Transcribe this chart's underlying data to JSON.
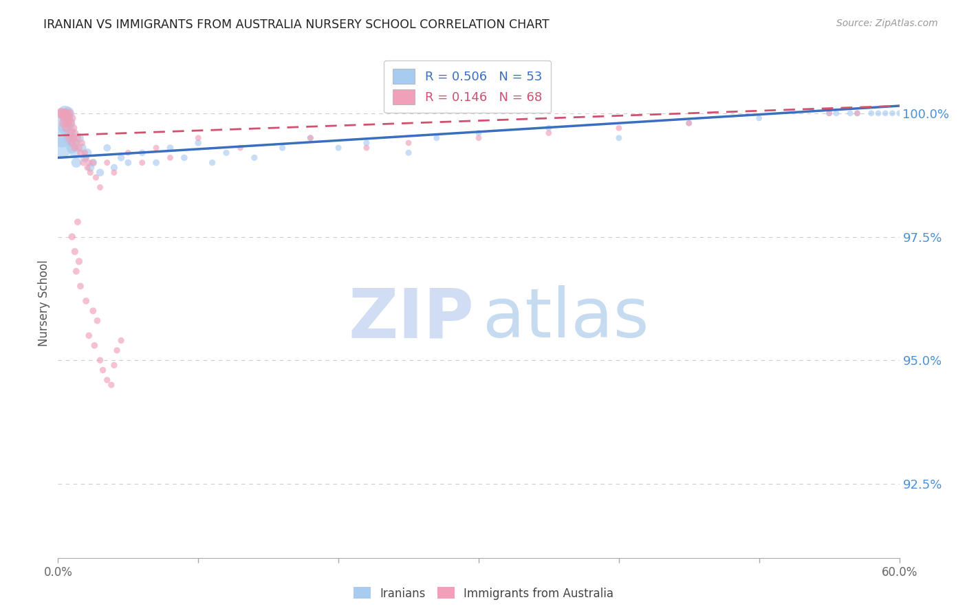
{
  "title": "IRANIAN VS IMMIGRANTS FROM AUSTRALIA NURSERY SCHOOL CORRELATION CHART",
  "source": "Source: ZipAtlas.com",
  "ylabel": "Nursery School",
  "yticks": [
    92.5,
    95.0,
    97.5,
    100.0
  ],
  "ytick_labels": [
    "92.5%",
    "95.0%",
    "97.5%",
    "100.0%"
  ],
  "xmin": 0.0,
  "xmax": 60.0,
  "ymin": 91.0,
  "ymax": 101.3,
  "iranians_color": "#A8CCF0",
  "immigrants_color": "#F0A0B8",
  "iranians_line_color": "#3A6EBF",
  "immigrants_line_color": "#D05070",
  "legend_R_iranians": "R = 0.506",
  "legend_N_iranians": "N = 53",
  "legend_R_immigrants": "R = 0.146",
  "legend_N_immigrants": "N = 68",
  "watermark_zip_color": "#C8D8F0",
  "watermark_atlas_color": "#A8C8E8",
  "grid_color": "#CCCCCC",
  "title_color": "#222222",
  "axis_label_color": "#555555",
  "ytick_color": "#4A90D9",
  "background_color": "#FFFFFF",
  "iranians_x": [
    0.2,
    0.3,
    0.4,
    0.5,
    0.5,
    0.6,
    0.7,
    0.8,
    0.8,
    0.9,
    1.0,
    1.1,
    1.2,
    1.3,
    1.5,
    1.7,
    1.9,
    2.1,
    2.3,
    2.5,
    3.0,
    3.5,
    4.0,
    4.5,
    5.0,
    6.0,
    7.0,
    8.0,
    9.0,
    10.0,
    11.0,
    12.0,
    14.0,
    16.0,
    18.0,
    20.0,
    22.0,
    25.0,
    27.0,
    30.0,
    35.0,
    40.0,
    45.0,
    50.0,
    55.0,
    57.0,
    58.0,
    59.0,
    59.5,
    60.0,
    55.5,
    56.5,
    58.5
  ],
  "iranians_y": [
    99.3,
    99.5,
    99.8,
    100.0,
    99.7,
    99.9,
    100.0,
    99.5,
    99.8,
    99.6,
    99.3,
    99.4,
    99.2,
    99.0,
    99.5,
    99.3,
    99.1,
    99.2,
    98.9,
    99.0,
    98.8,
    99.3,
    98.9,
    99.1,
    99.0,
    99.2,
    99.0,
    99.3,
    99.1,
    99.4,
    99.0,
    99.2,
    99.1,
    99.3,
    99.5,
    99.3,
    99.4,
    99.2,
    99.5,
    99.6,
    99.7,
    99.5,
    99.8,
    99.9,
    100.0,
    100.0,
    100.0,
    100.0,
    100.0,
    100.0,
    100.0,
    100.0,
    100.0
  ],
  "iranians_sizes": [
    500,
    400,
    300,
    250,
    200,
    200,
    180,
    180,
    160,
    150,
    140,
    130,
    120,
    110,
    100,
    90,
    85,
    80,
    75,
    70,
    65,
    60,
    55,
    55,
    50,
    50,
    50,
    50,
    48,
    48,
    45,
    45,
    44,
    44,
    44,
    43,
    43,
    42,
    42,
    42,
    41,
    41,
    41,
    40,
    40,
    40,
    40,
    40,
    40,
    40,
    40,
    40,
    40
  ],
  "immigrants_x": [
    0.2,
    0.3,
    0.4,
    0.5,
    0.5,
    0.6,
    0.6,
    0.7,
    0.7,
    0.8,
    0.8,
    0.9,
    0.9,
    1.0,
    1.0,
    1.1,
    1.1,
    1.2,
    1.2,
    1.3,
    1.4,
    1.5,
    1.6,
    1.7,
    1.8,
    1.9,
    2.0,
    2.1,
    2.2,
    2.3,
    2.5,
    2.7,
    3.0,
    3.5,
    4.0,
    5.0,
    6.0,
    7.0,
    8.0,
    10.0,
    13.0,
    1.0,
    1.2,
    1.5,
    1.3,
    1.6,
    1.4,
    2.0,
    2.5,
    2.8,
    2.2,
    2.6,
    3.0,
    3.2,
    3.5,
    3.8,
    4.0,
    4.2,
    4.5,
    55.0,
    57.0,
    18.0,
    22.0,
    25.0,
    30.0,
    35.0,
    40.0,
    45.0
  ],
  "immigrants_y": [
    100.0,
    100.0,
    99.8,
    100.0,
    99.9,
    100.0,
    99.7,
    99.8,
    99.9,
    100.0,
    99.5,
    99.8,
    99.6,
    99.9,
    99.4,
    99.7,
    99.5,
    99.3,
    99.6,
    99.4,
    99.5,
    99.3,
    99.2,
    99.4,
    99.0,
    99.2,
    99.1,
    98.9,
    99.0,
    98.8,
    99.0,
    98.7,
    98.5,
    99.0,
    98.8,
    99.2,
    99.0,
    99.3,
    99.1,
    99.5,
    99.3,
    97.5,
    97.2,
    97.0,
    96.8,
    96.5,
    97.8,
    96.2,
    96.0,
    95.8,
    95.5,
    95.3,
    95.0,
    94.8,
    94.6,
    94.5,
    94.9,
    95.2,
    95.4,
    100.0,
    100.0,
    99.5,
    99.3,
    99.4,
    99.5,
    99.6,
    99.7,
    99.8
  ],
  "immigrants_sizes": [
    120,
    110,
    100,
    100,
    90,
    90,
    85,
    85,
    80,
    80,
    75,
    75,
    70,
    70,
    65,
    65,
    60,
    60,
    58,
    55,
    55,
    52,
    50,
    50,
    48,
    48,
    46,
    45,
    45,
    44,
    44,
    43,
    42,
    42,
    42,
    41,
    41,
    41,
    40,
    40,
    40,
    55,
    55,
    55,
    50,
    50,
    50,
    50,
    50,
    48,
    48,
    48,
    46,
    46,
    45,
    45,
    45,
    44,
    44,
    40,
    40,
    40,
    40,
    40,
    40,
    40,
    40,
    40
  ],
  "ir_trend_x0": 0.0,
  "ir_trend_x1": 60.0,
  "ir_trend_y0": 99.1,
  "ir_trend_y1": 100.15,
  "im_trend_x0": 0.0,
  "im_trend_x1": 60.0,
  "im_trend_y0": 99.55,
  "im_trend_y1": 100.15
}
